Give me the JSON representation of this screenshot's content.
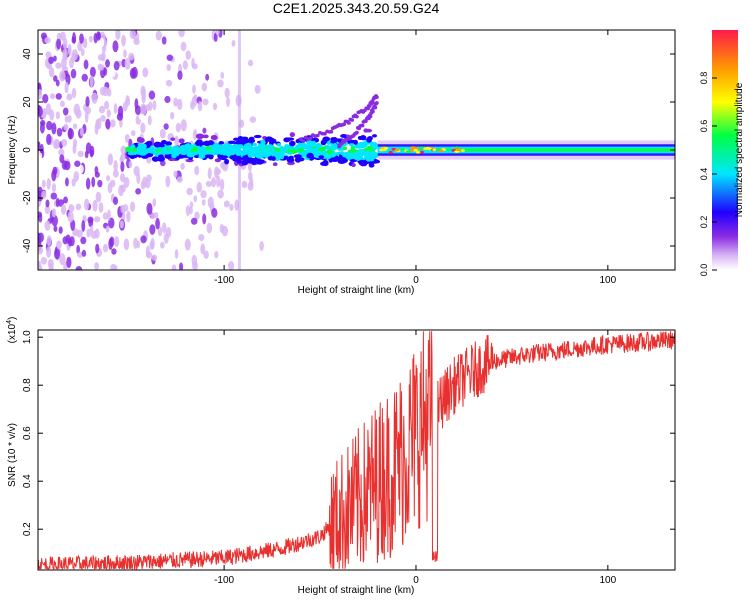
{
  "title": "C2E1.2025.343.20.59.G24",
  "chart_data": [
    {
      "type": "heatmap",
      "xlabel": "Height of straight line (km)",
      "ylabel": "Frequency (Hz)",
      "xlim": [
        -197,
        135
      ],
      "ylim": [
        -50,
        50
      ],
      "xticks": [
        -100,
        0,
        100
      ],
      "xtick_labels": [
        "-100",
        "0",
        "100"
      ],
      "yticks": [
        40,
        20,
        0,
        -20,
        -40
      ],
      "ytick_labels": [
        "40",
        "20",
        "0",
        "-20",
        "-40"
      ],
      "colorbar": {
        "label": "Normalized spectral amplitude",
        "range": [
          0,
          1
        ],
        "ticks": [
          0.0,
          0.2,
          0.4,
          0.6,
          0.8
        ],
        "tick_labels": [
          "0.0",
          "0.2",
          "0.4",
          "0.6",
          "0.8"
        ],
        "colors": [
          "#ffffff",
          "#d9b6f5",
          "#8a2be2",
          "#1f00ff",
          "#00e6ff",
          "#00ff44",
          "#ffff00",
          "#ff9900",
          "#ff1a4a"
        ]
      },
      "features": {
        "noise_region_x": [
          -197,
          -80
        ],
        "scatter_band_x": [
          -150,
          -20
        ],
        "carrier_x": [
          -20,
          135
        ],
        "carrier_freq": 0,
        "upper_tracks": [
          {
            "x": [
              -60,
              -45,
              -35,
              -25,
              -20
            ],
            "y": [
              4,
              8,
              12,
              18,
              23
            ]
          },
          {
            "x": [
              -40,
              -32,
              -25,
              -20
            ],
            "y": [
              2,
              7,
              13,
              20
            ]
          }
        ]
      }
    },
    {
      "type": "line",
      "xlabel": "Height of straight line (km)",
      "ylabel": "SNR (10 * v/v)",
      "y_multiplier": "(x10",
      "y_multiplier_exp": "4",
      "xlim": [
        -197,
        135
      ],
      "ylim": [
        0.03,
        1.03
      ],
      "xticks": [
        -100,
        0,
        100
      ],
      "xtick_labels": [
        "-100",
        "0",
        "100"
      ],
      "yticks": [
        0.2,
        0.4,
        0.6,
        0.8,
        1.0
      ],
      "ytick_labels": [
        "0.2",
        "0.4",
        "0.6",
        "0.8",
        "1.0"
      ],
      "color": "#e8302e",
      "trend": {
        "x": [
          -197,
          -150,
          -100,
          -70,
          -50,
          -40,
          -30,
          -20,
          -12,
          -5,
          0,
          5,
          10,
          20,
          30,
          40,
          60,
          80,
          100,
          120,
          135
        ],
        "y": [
          0.05,
          0.06,
          0.08,
          0.12,
          0.17,
          0.25,
          0.32,
          0.4,
          0.45,
          0.52,
          0.6,
          0.66,
          0.7,
          0.8,
          0.86,
          0.9,
          0.93,
          0.95,
          0.97,
          0.98,
          0.99
        ]
      },
      "dips": [
        {
          "x": 10,
          "y": 0.06
        }
      ]
    }
  ]
}
